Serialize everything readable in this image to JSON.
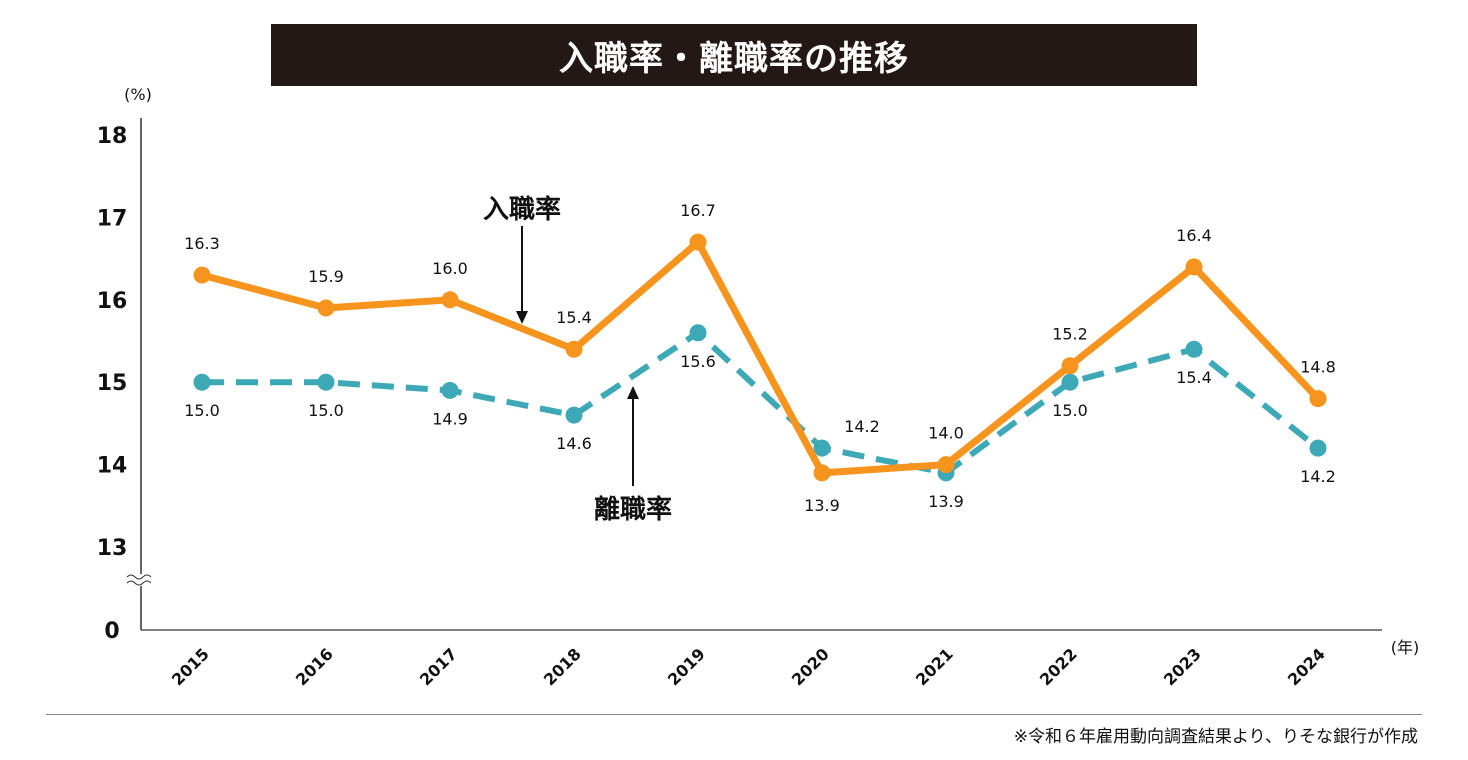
{
  "chart_data": {
    "type": "line",
    "title": "入職率・離職率の推移",
    "ylabel": "(%)",
    "xlabel": "(年)",
    "categories": [
      "2015",
      "2016",
      "2017",
      "2018",
      "2019",
      "2020",
      "2021",
      "2022",
      "2023",
      "2024"
    ],
    "yticks": [
      "0",
      "13",
      "14",
      "15",
      "16",
      "17",
      "18"
    ],
    "ylim": [
      13,
      18
    ],
    "y_axis_break": "between 0 and 13",
    "grid": false,
    "legend": "inline annotations with arrows",
    "series": [
      {
        "name": "入職率",
        "color": "#F7941D",
        "style": "solid",
        "values": [
          16.3,
          15.9,
          16.0,
          15.4,
          16.7,
          13.9,
          14.0,
          15.2,
          16.4,
          14.8
        ],
        "labels": [
          "16.3",
          "15.9",
          "16.0",
          "15.4",
          "16.7",
          "13.9",
          "14.0",
          "15.2",
          "16.4",
          "14.8"
        ]
      },
      {
        "name": "離職率",
        "color": "#3DA9B6",
        "style": "dashed",
        "values": [
          15.0,
          15.0,
          14.9,
          14.6,
          15.6,
          14.2,
          13.9,
          15.0,
          15.4,
          14.2
        ],
        "labels": [
          "15.0",
          "15.0",
          "14.9",
          "14.6",
          "15.6",
          "14.2",
          "13.9",
          "15.0",
          "15.4",
          "14.2"
        ]
      }
    ],
    "source_note": "※令和６年雇用動向調査結果より、りそな銀行が作成"
  }
}
